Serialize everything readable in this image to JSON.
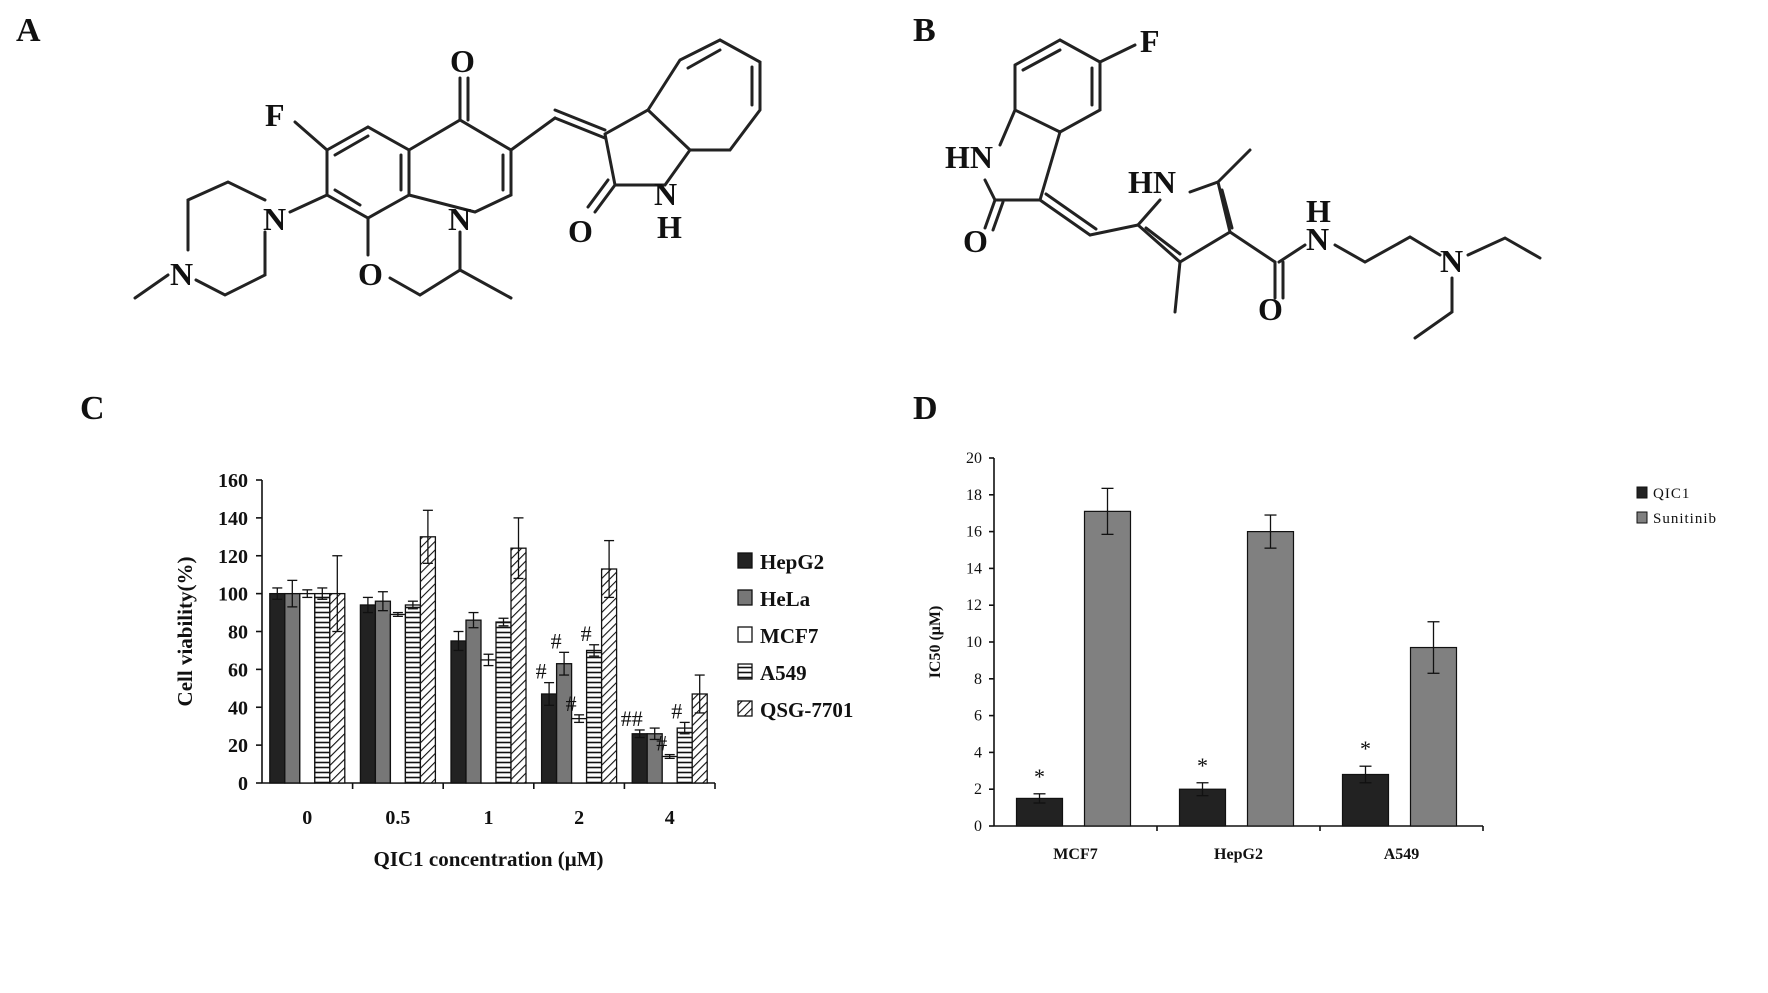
{
  "panels": {
    "a": "A",
    "b": "B",
    "c": "C",
    "d": "D"
  },
  "structure_a_atoms": [
    "O",
    "F",
    "N",
    "N",
    "N",
    "O",
    "O",
    "N",
    "H"
  ],
  "structure_b_atoms": [
    "F",
    "HN",
    "O",
    "HN",
    "H",
    "N",
    "O",
    "N"
  ],
  "colors": {
    "hepg2": "#222222",
    "hela": "#777777",
    "mcf7": "#ffffff",
    "qic1": "#222222",
    "sunitinib": "#808080"
  },
  "chart_data": [
    {
      "type": "bar",
      "xlabel": "QIC1 concentration (μM)",
      "ylabel": "Cell viability(%)",
      "ylim": [
        0,
        160
      ],
      "yticks": [
        0,
        20,
        40,
        60,
        80,
        100,
        120,
        140,
        160
      ],
      "categories": [
        "0",
        "0.5",
        "1",
        "2",
        "4"
      ],
      "legend_position": "right",
      "series": [
        {
          "name": "HepG2",
          "pattern": "solid-dark",
          "values": [
            100,
            94,
            75,
            47,
            26
          ],
          "errors": [
            3,
            4,
            5,
            6,
            2
          ]
        },
        {
          "name": "HeLa",
          "pattern": "solid-gray",
          "values": [
            100,
            96,
            86,
            63,
            26
          ],
          "errors": [
            7,
            5,
            4,
            6,
            3
          ]
        },
        {
          "name": "MCF7",
          "pattern": "white",
          "values": [
            100,
            89,
            65,
            34,
            14
          ],
          "errors": [
            2,
            1,
            3,
            2,
            1
          ]
        },
        {
          "name": "A549",
          "pattern": "horizontal-lines",
          "values": [
            100,
            94,
            85,
            70,
            29
          ],
          "errors": [
            3,
            2,
            2,
            3,
            3
          ]
        },
        {
          "name": "QSG-7701",
          "pattern": "diagonal-hatch",
          "values": [
            100,
            130,
            124,
            113,
            47
          ],
          "errors": [
            20,
            14,
            16,
            15,
            10
          ]
        }
      ],
      "annotations": [
        {
          "category": "2",
          "series": "HepG2",
          "text": "#"
        },
        {
          "category": "2",
          "series": "HeLa",
          "text": "#"
        },
        {
          "category": "2",
          "series": "MCF7",
          "text": "#"
        },
        {
          "category": "2",
          "series": "A549",
          "text": "#"
        },
        {
          "category": "4",
          "series": "HepG2",
          "text": "##"
        },
        {
          "category": "4",
          "series": "MCF7",
          "text": "#"
        },
        {
          "category": "4",
          "series": "A549",
          "text": "#"
        }
      ]
    },
    {
      "type": "bar",
      "xlabel": "",
      "ylabel": "IC50 (μM)",
      "ylim": [
        0,
        20
      ],
      "yticks": [
        0,
        2,
        4,
        6,
        8,
        10,
        12,
        14,
        16,
        18,
        20
      ],
      "categories": [
        "MCF7",
        "HepG2",
        "A549"
      ],
      "legend_position": "top-right",
      "series": [
        {
          "name": "QIC1",
          "values": [
            1.5,
            2.0,
            2.8
          ],
          "errors": [
            0.25,
            0.35,
            0.45
          ]
        },
        {
          "name": "Sunitinib",
          "values": [
            17.1,
            16.0,
            9.7
          ],
          "errors": [
            1.25,
            0.9,
            1.4
          ]
        }
      ],
      "annotations": [
        {
          "category": "MCF7",
          "series": "QIC1",
          "text": "*"
        },
        {
          "category": "HepG2",
          "series": "QIC1",
          "text": "*"
        },
        {
          "category": "A549",
          "series": "QIC1",
          "text": "*"
        }
      ]
    }
  ]
}
